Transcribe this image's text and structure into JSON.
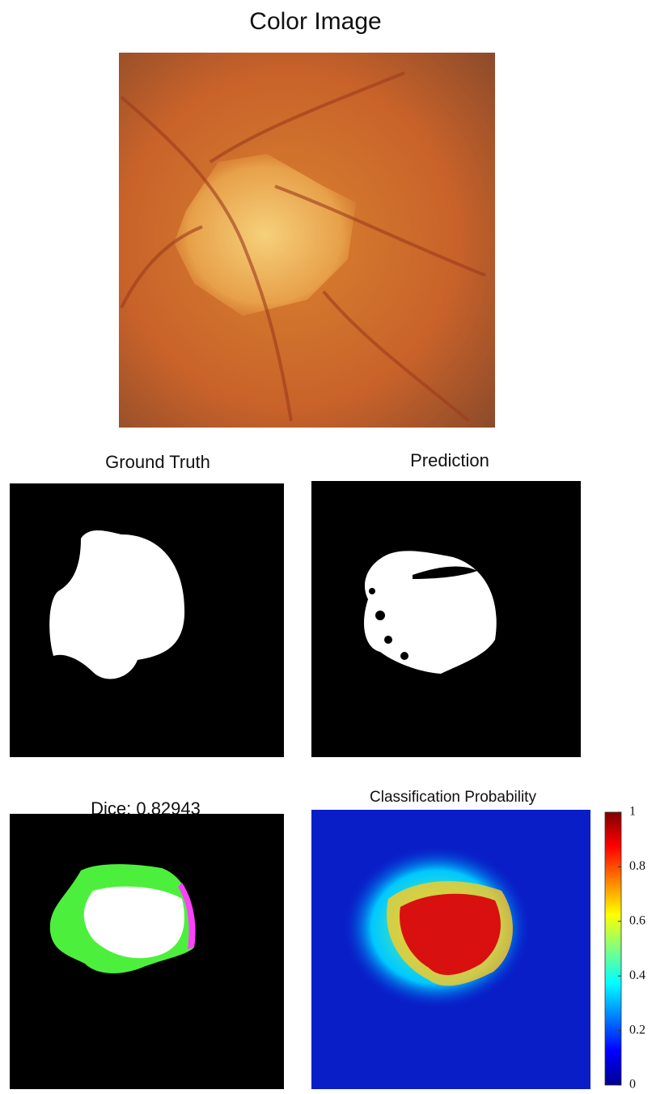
{
  "title": "Color Image",
  "panels": [
    {
      "title": "Ground Truth"
    },
    {
      "title": "Prediction"
    },
    {
      "title": "Dice: 0.82943"
    },
    {
      "title": "Classification Probability"
    }
  ],
  "colorbar": {
    "lim": [
      0,
      1
    ],
    "ticks": [
      0,
      0.2,
      0.4,
      0.6,
      0.8,
      1
    ]
  }
}
